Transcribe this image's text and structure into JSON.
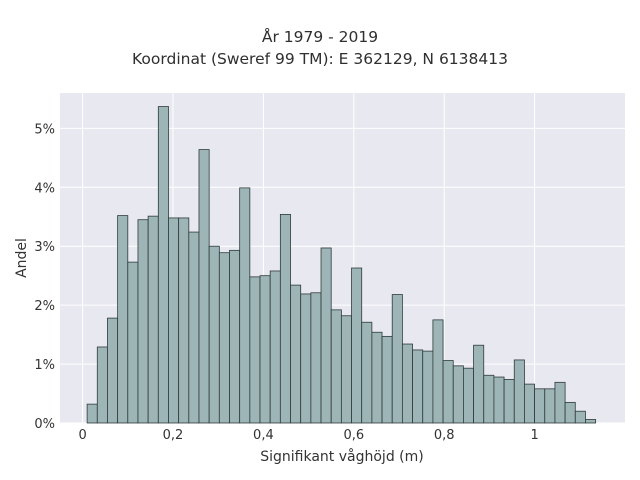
{
  "chart_data": {
    "type": "bar",
    "title": "År 1979 - 2019",
    "subtitle": "Koordinat (Sweref 99 TM): E 362129, N 6138413",
    "xlabel": "Signifikant våghöjd (m)",
    "ylabel": "Andel",
    "xlim": [
      -0.05,
      1.2
    ],
    "ylim": [
      0,
      5.6
    ],
    "x_ticks": [
      0,
      0.2,
      0.4,
      0.6,
      0.8,
      1.0
    ],
    "x_tick_labels": [
      "0",
      "0,2",
      "0,4",
      "0,6",
      "0,8",
      "1"
    ],
    "y_ticks": [
      0,
      1,
      2,
      3,
      4,
      5
    ],
    "y_tick_labels": [
      "0%",
      "1%",
      "2%",
      "3%",
      "4%",
      "5%"
    ],
    "bin_start": 0.01,
    "bin_width": 0.0225,
    "values": [
      0.32,
      1.29,
      1.78,
      3.52,
      2.73,
      3.45,
      3.51,
      5.37,
      3.48,
      3.48,
      3.24,
      4.64,
      3.0,
      2.89,
      2.93,
      3.99,
      2.48,
      2.5,
      2.58,
      3.54,
      2.34,
      2.19,
      2.21,
      2.97,
      1.92,
      1.82,
      2.63,
      1.71,
      1.54,
      1.47,
      2.18,
      1.34,
      1.24,
      1.22,
      1.75,
      1.06,
      0.97,
      0.93,
      1.32,
      0.81,
      0.78,
      0.74,
      1.07,
      0.66,
      0.58,
      0.58,
      0.69,
      0.35,
      0.2,
      0.06
    ],
    "bar_color": "#9db5b6",
    "bar_edge_color": "#2f3b3b",
    "background_color": "#e8e8f0",
    "grid": true
  }
}
